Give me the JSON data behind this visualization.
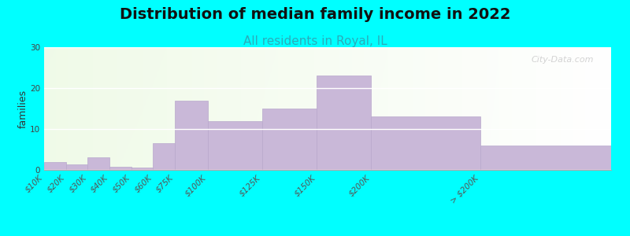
{
  "title": "Distribution of median family income in 2022",
  "subtitle": "All residents in Royal, IL",
  "ylabel": "families",
  "background_color": "#00FFFF",
  "bar_color": "#C9B8D8",
  "bar_edge_color": "#b8a8cc",
  "bin_edges": [
    0,
    10,
    20,
    30,
    40,
    50,
    60,
    75,
    100,
    125,
    150,
    200,
    260
  ],
  "bin_labels": [
    "$10K",
    "$20K",
    "$30K",
    "$40K",
    "$50K",
    "$60K",
    "$75K",
    "$100K",
    "$125K",
    "$150K",
    "$200K",
    "> $200K"
  ],
  "values": [
    2,
    1.3,
    3,
    0.7,
    0.5,
    6.5,
    17,
    12,
    15,
    23,
    13,
    6
  ],
  "ylim": [
    0,
    30
  ],
  "yticks": [
    0,
    10,
    20,
    30
  ],
  "title_fontsize": 14,
  "subtitle_fontsize": 11,
  "ylabel_fontsize": 9,
  "tick_fontsize": 7.5,
  "watermark_text": "City-Data.com"
}
